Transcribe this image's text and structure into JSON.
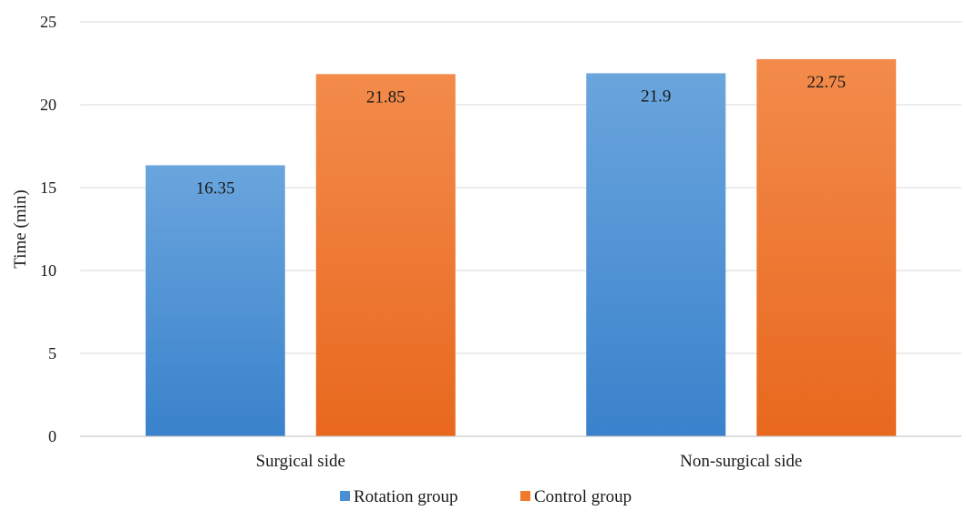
{
  "chart_data": {
    "type": "bar",
    "title": "",
    "xlabel": "",
    "ylabel": "Time (min)",
    "ylim": [
      0,
      25
    ],
    "yticks": [
      0,
      5,
      10,
      15,
      20,
      25
    ],
    "grid": true,
    "legend_position": "bottom",
    "categories": [
      "Surgical side",
      "Non-surgical side"
    ],
    "series": [
      {
        "name": "Rotation group",
        "values": [
          16.35,
          21.9
        ],
        "data_labels": [
          "16.35",
          "21.9"
        ],
        "color": "#4a8fd4"
      },
      {
        "name": "Control group",
        "values": [
          21.85,
          22.75
        ],
        "data_labels": [
          "21.85",
          "22.75"
        ],
        "color": "#f07a2a"
      }
    ]
  }
}
